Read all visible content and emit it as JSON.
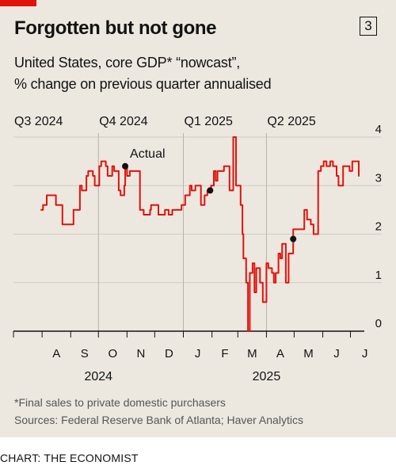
{
  "header": {
    "title": "Forgotten but not gone",
    "chart_number": "3",
    "subtitle_line1": "United States, core GDP* “nowcast”,",
    "subtitle_line2": "% change on previous quarter annualised"
  },
  "footer": {
    "footnote": "*Final sales to private domestic purchasers",
    "sources": "Sources: Federal Reserve Bank of Atlanta; Haver Analytics",
    "credit": "CHART: THE ECONOMIST"
  },
  "colors": {
    "line": "#e3120b",
    "background": "#ece8e0",
    "brand": "#e3120b"
  },
  "chart_data": {
    "type": "line",
    "ylim": [
      0,
      4
    ],
    "y_ticks": [
      "0",
      "1",
      "2",
      "3",
      "4"
    ],
    "y_axis_position": "right",
    "grid": true,
    "x_month_labels": [
      "A",
      "S",
      "O",
      "N",
      "D",
      "J",
      "F",
      "M",
      "A",
      "M",
      "J",
      "J"
    ],
    "x_year_labels": [
      "2024",
      "2025"
    ],
    "quarter_labels": [
      "Q3 2024",
      "Q4 2024",
      "Q1 2025",
      "Q2 2025"
    ],
    "annotation": "Actual",
    "actual_points": [
      {
        "x": "2024-10-30",
        "y": 3.4
      },
      {
        "x": "2025-01-30",
        "y": 2.9
      },
      {
        "x": "2025-04-30",
        "y": 1.9
      }
    ],
    "series": [
      {
        "x": [
          "2024-07-31",
          "2024-08-02",
          "2024-08-06",
          "2024-08-09",
          "2024-08-14",
          "2024-08-16",
          "2024-08-21",
          "2024-08-23",
          "2024-08-28",
          "2024-08-30",
          "2024-09-04",
          "2024-09-06",
          "2024-09-11",
          "2024-09-13",
          "2024-09-18",
          "2024-09-20",
          "2024-09-25",
          "2024-09-27",
          "2024-10-02",
          "2024-10-04",
          "2024-10-09",
          "2024-10-11",
          "2024-10-16",
          "2024-10-18",
          "2024-10-23",
          "2024-10-25",
          "2024-10-29",
          "2024-10-30",
          "2024-11-01",
          "2024-11-04",
          "2024-11-06",
          "2024-11-08",
          "2024-11-13",
          "2024-11-15",
          "2024-11-19",
          "2024-11-22",
          "2024-11-26",
          "2024-11-27",
          "2024-12-02",
          "2024-12-05",
          "2024-12-09",
          "2024-12-12",
          "2024-12-16",
          "2024-12-18",
          "2024-12-20",
          "2024-12-24",
          "2024-12-30",
          "2025-01-03",
          "2025-01-08",
          "2025-01-10",
          "2025-01-14",
          "2025-01-16",
          "2025-01-20",
          "2025-01-24",
          "2025-01-27",
          "2025-01-30",
          "2025-01-31",
          "2025-02-03",
          "2025-02-05",
          "2025-02-07",
          "2025-02-12",
          "2025-02-14",
          "2025-02-18",
          "2025-02-20",
          "2025-02-24",
          "2025-02-27",
          "2025-03-03",
          "2025-03-04",
          "2025-03-06",
          "2025-03-07",
          "2025-03-10",
          "2025-03-12",
          "2025-03-14",
          "2025-03-17",
          "2025-03-19",
          "2025-03-21",
          "2025-03-25",
          "2025-03-28",
          "2025-04-01",
          "2025-04-03",
          "2025-04-07",
          "2025-04-09",
          "2025-04-11",
          "2025-04-14",
          "2025-04-16",
          "2025-04-18",
          "2025-04-22",
          "2025-04-25",
          "2025-04-29",
          "2025-04-30",
          "2025-05-01",
          "2025-05-05",
          "2025-05-08",
          "2025-05-12",
          "2025-05-15",
          "2025-05-19",
          "2025-05-22",
          "2025-05-27",
          "2025-05-30",
          "2025-06-02",
          "2025-06-05",
          "2025-06-09",
          "2025-06-12",
          "2025-06-16",
          "2025-06-18",
          "2025-06-23",
          "2025-06-26",
          "2025-06-30",
          "2025-07-03",
          "2025-07-08",
          "2025-07-10"
        ],
        "y": [
          2.5,
          2.6,
          2.8,
          2.8,
          2.8,
          2.6,
          2.6,
          2.2,
          2.2,
          2.2,
          2.5,
          2.5,
          3.0,
          2.9,
          3.2,
          3.3,
          3.2,
          3.0,
          3.4,
          3.5,
          3.4,
          3.2,
          3.4,
          3.3,
          2.9,
          2.8,
          3.0,
          3.4,
          3.2,
          3.3,
          3.3,
          3.3,
          3.3,
          2.5,
          2.4,
          2.4,
          2.5,
          2.6,
          2.6,
          2.4,
          2.4,
          2.5,
          2.4,
          2.4,
          2.5,
          2.5,
          2.6,
          2.8,
          3.0,
          2.9,
          3.0,
          3.0,
          2.6,
          2.8,
          2.9,
          2.9,
          3.0,
          3.3,
          3.1,
          3.3,
          3.3,
          3.4,
          3.4,
          2.9,
          4.0,
          3.0,
          3.0,
          2.6,
          2.0,
          1.5,
          1.0,
          0.0,
          1.2,
          1.4,
          0.8,
          1.3,
          1.0,
          0.6,
          1.4,
          1.3,
          1.2,
          1.0,
          1.2,
          1.6,
          1.5,
          1.8,
          1.0,
          1.6,
          1.6,
          2.1,
          2.1,
          2.1,
          2.1,
          2.5,
          2.3,
          2.2,
          2.0,
          3.3,
          3.4,
          3.5,
          3.4,
          3.5,
          3.4,
          3.2,
          3.0,
          3.4,
          3.4,
          3.3,
          3.5,
          3.5,
          3.2
        ]
      }
    ]
  }
}
